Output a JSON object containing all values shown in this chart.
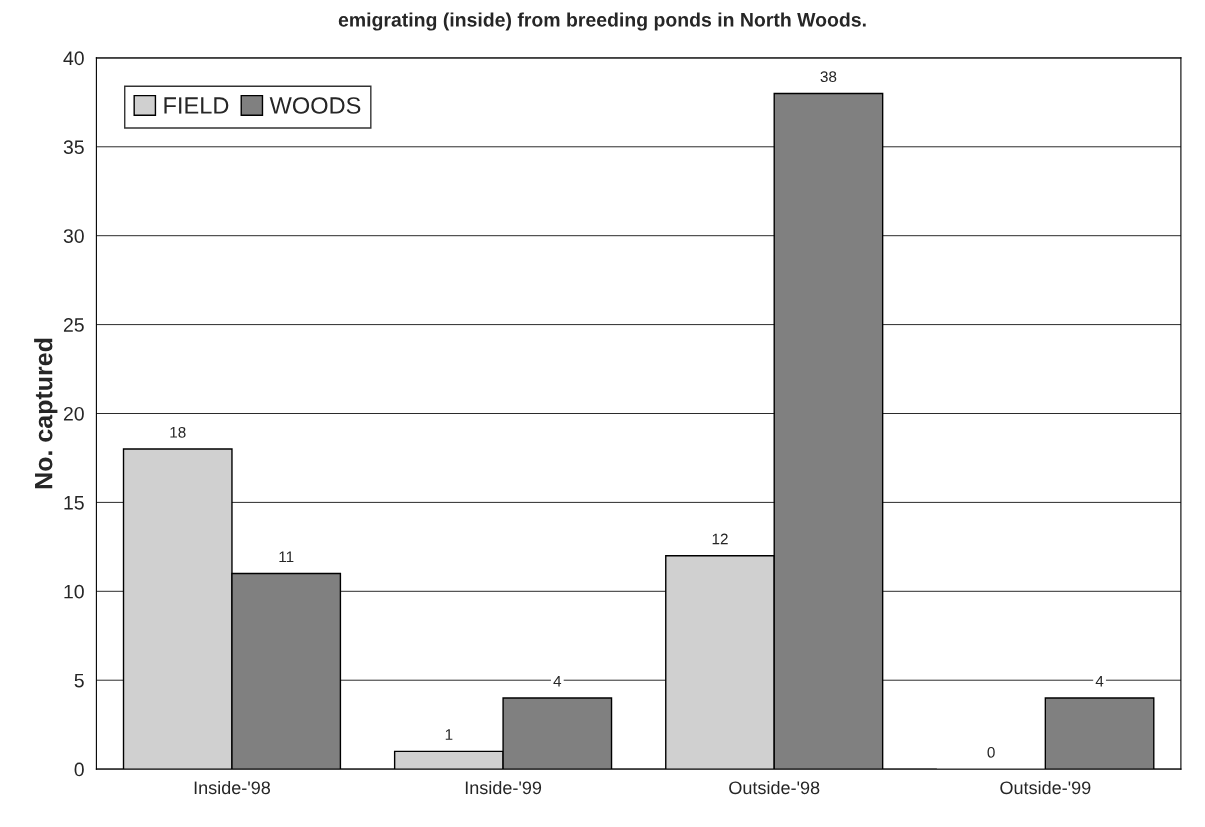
{
  "chart_data": {
    "type": "bar",
    "title": "emigrating (inside) from breeding ponds in North Woods.",
    "ylabel": "No. captured",
    "categories": [
      "Inside-'98",
      "Inside-'99",
      "Outside-'98",
      "Outside-'99"
    ],
    "series": [
      {
        "name": "FIELD",
        "color": "#d0d0d0",
        "values": [
          18,
          1,
          12,
          0
        ]
      },
      {
        "name": "WOODS",
        "color": "#808080",
        "values": [
          11,
          4,
          38,
          4
        ]
      }
    ],
    "ylim": [
      0,
      40
    ],
    "yticks": [
      0,
      5,
      10,
      15,
      20,
      25,
      30,
      35,
      40
    ],
    "grid": "y",
    "legend": "top left",
    "data_labels": true
  }
}
